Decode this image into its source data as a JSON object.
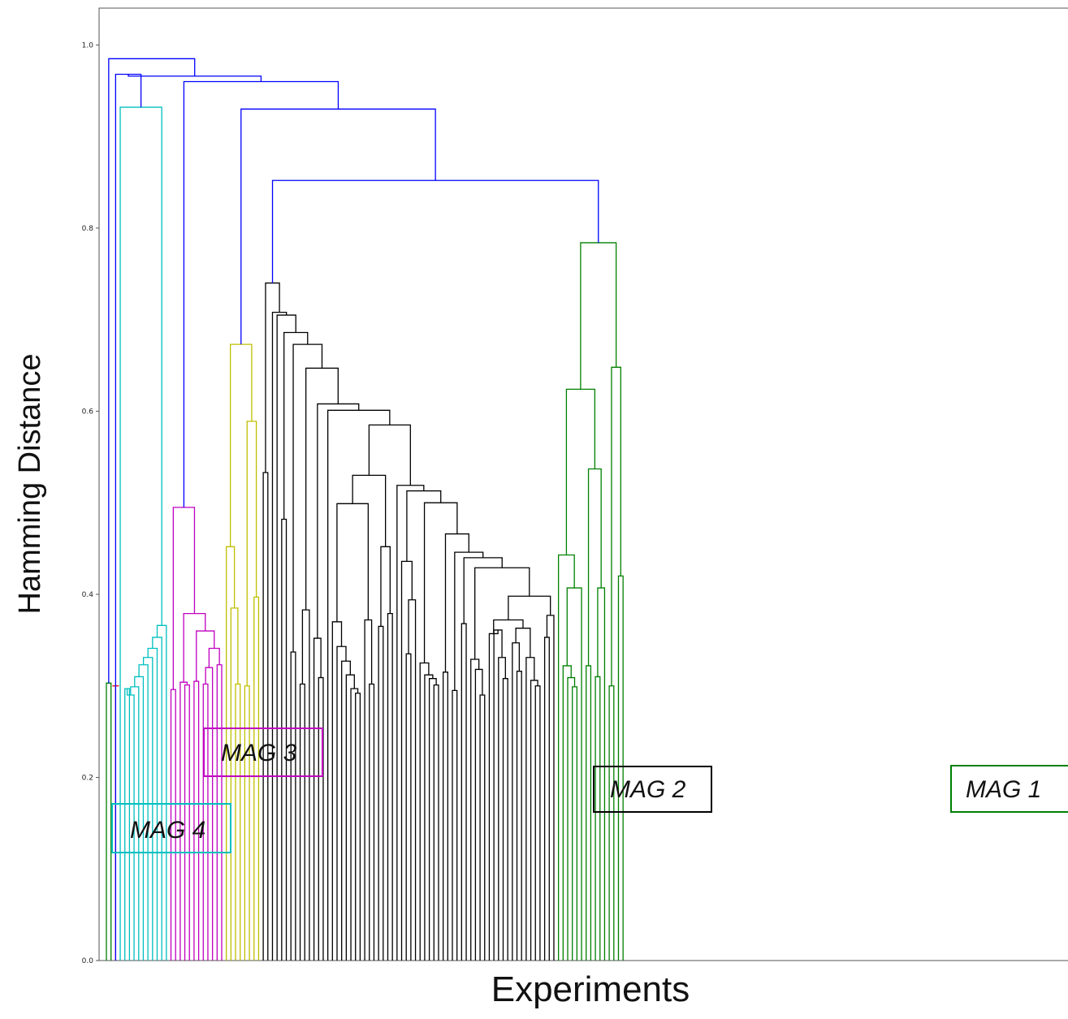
{
  "chart_data": {
    "type": "dendrogram",
    "title": "",
    "xlabel": "Experiments",
    "ylabel": "Hamming Distance",
    "ylim": [
      0.0,
      1.05
    ],
    "yticks": [
      "0.0",
      "0.2",
      "0.4",
      "0.6",
      "0.8",
      "1.0"
    ],
    "ytick_values": [
      0.0,
      0.2,
      0.4,
      0.6,
      0.8,
      1.0
    ],
    "colors": {
      "above_threshold": "#0000ff",
      "green": "#008000",
      "red": "#ff0000",
      "cyan": "#00bfbf",
      "magenta": "#bf00bf",
      "yellow": "#bfbf00",
      "black": "#000000",
      "axes": "#555555"
    },
    "root_merge_heights": [
      0.985,
      0.968,
      0.966,
      0.96,
      0.93,
      0.852
    ],
    "clusters": [
      {
        "color": "green",
        "leaves": 2,
        "merge_heights": [
          0.303,
          0.296
        ]
      },
      {
        "color": "red",
        "leaves": 1,
        "merge_heights": [
          0.3
        ]
      },
      {
        "color": "cyan",
        "label": "MAG 4",
        "leaves": 12,
        "top_height": 0.932,
        "merge_heights": [
          0.366,
          0.353,
          0.341,
          0.331,
          0.323,
          0.31,
          0.299,
          0.297,
          0.29
        ]
      },
      {
        "color": "magenta",
        "label": "MAG 3",
        "leaves": 12,
        "top_height": 0.495,
        "merge_heights": [
          0.379,
          0.36,
          0.341,
          0.32,
          0.304,
          0.301,
          0.296
        ]
      },
      {
        "color": "yellow",
        "leaves": 8,
        "top_height": 0.673,
        "merge_heights": [
          0.589,
          0.452,
          0.397,
          0.385,
          0.302
        ]
      },
      {
        "color": "black",
        "label": "MAG 2",
        "leaves": 70,
        "top_height": 0.74,
        "merge_heights": [
          0.708,
          0.705,
          0.686,
          0.673,
          0.647,
          0.608,
          0.601,
          0.585,
          0.53,
          0.519,
          0.513,
          0.5,
          0.482,
          0.466,
          0.446,
          0.44,
          0.429,
          0.398,
          0.394,
          0.383,
          0.377,
          0.372,
          0.37,
          0.363,
          0.353,
          0.337,
          0.315,
          0.31,
          0.3,
          0.29
        ]
      },
      {
        "color": "green",
        "label": "MAG 1",
        "leaves": 24,
        "top_height": 0.784,
        "merge_heights": [
          0.648,
          0.624,
          0.537,
          0.443,
          0.428,
          0.407,
          0.322,
          0.309,
          0.3,
          0.29
        ]
      }
    ],
    "legend": "none",
    "grid": false
  }
}
